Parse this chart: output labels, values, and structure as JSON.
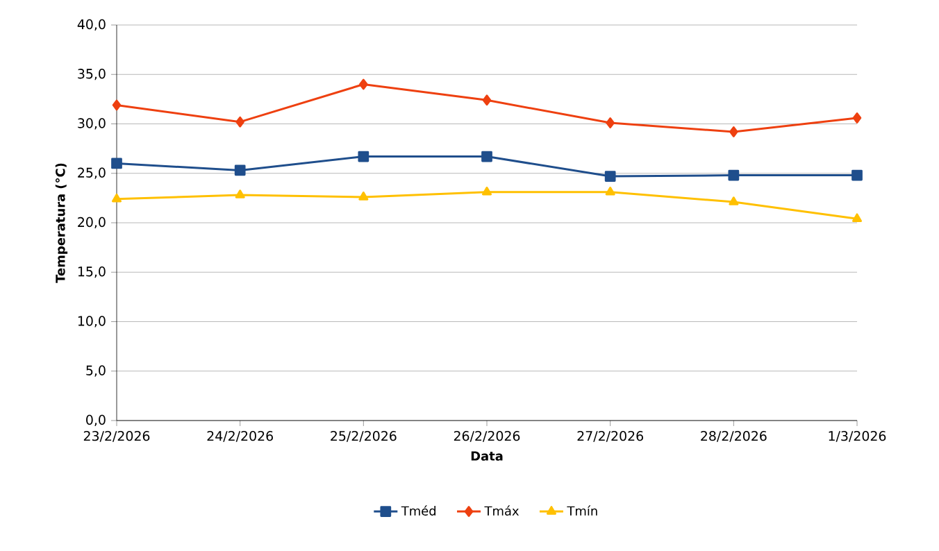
{
  "chart_data": {
    "type": "line",
    "xlabel": "Data",
    "ylabel": "Temperatura (°C)",
    "categories": [
      "23/2/2026",
      "24/2/2026",
      "25/2/2026",
      "26/2/2026",
      "27/2/2026",
      "28/2/2026",
      "1/3/2026"
    ],
    "series": [
      {
        "name": "Tméd",
        "color": "#1f4e8c",
        "marker": "square",
        "values": [
          26.0,
          25.3,
          26.7,
          26.7,
          24.7,
          24.8,
          24.8
        ]
      },
      {
        "name": "Tmáx",
        "color": "#ee4010",
        "marker": "diamond",
        "values": [
          31.9,
          30.2,
          34.0,
          32.4,
          30.1,
          29.2,
          30.6
        ]
      },
      {
        "name": "Tmín",
        "color": "#ffc000",
        "marker": "triangle",
        "values": [
          22.4,
          22.8,
          22.6,
          23.1,
          23.1,
          22.1,
          20.4
        ]
      }
    ],
    "ylim": [
      0,
      40
    ],
    "yticks": [
      {
        "value": 0,
        "label": "0,0"
      },
      {
        "value": 5,
        "label": "5,0"
      },
      {
        "value": 10,
        "label": "10,0"
      },
      {
        "value": 15,
        "label": "15,0"
      },
      {
        "value": 20,
        "label": "20,0"
      },
      {
        "value": 25,
        "label": "25,0"
      },
      {
        "value": 30,
        "label": "30,0"
      },
      {
        "value": 35,
        "label": "35,0"
      },
      {
        "value": 40,
        "label": "40,0"
      }
    ],
    "grid": "y",
    "legend": "bottom",
    "line_style": "solid"
  }
}
